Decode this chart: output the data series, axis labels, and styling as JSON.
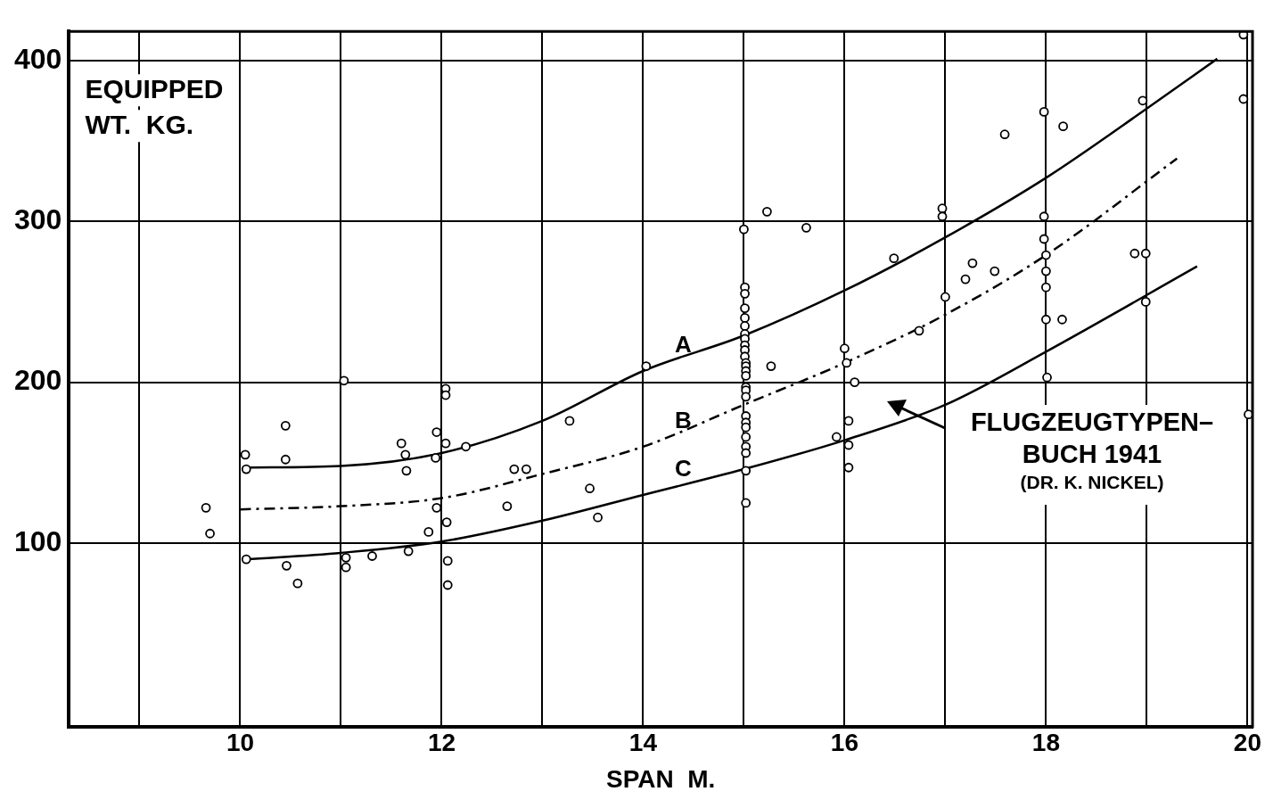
{
  "chart_data": {
    "type": "scatter",
    "xlabel": "SPAN  M.",
    "ylabel": "EQUIPPED\nWT.  KG.",
    "xlim": [
      8.3,
      20.05
    ],
    "ylim": [
      -14,
      418
    ],
    "xticks": [
      {
        "value": 9,
        "label": null
      },
      10,
      {
        "value": 11,
        "label": null
      },
      12,
      {
        "value": 13,
        "label": null
      },
      14,
      {
        "value": 15,
        "label": null
      },
      16,
      {
        "value": 17,
        "label": null
      },
      18,
      {
        "value": 19,
        "label": null
      },
      20
    ],
    "yticks": [
      100,
      200,
      300,
      400
    ],
    "grid": true,
    "legend": false,
    "marker": "circle",
    "series": [
      {
        "color": "#000000",
        "x": [
          11.03,
          12.04,
          12.04,
          10.45,
          11.95,
          13.27,
          14.03,
          10.05,
          10.45,
          11.6,
          12.04,
          12.24,
          11.64,
          11.94,
          11.65,
          10.06,
          12.72,
          12.84,
          13.47,
          9.66,
          11.95,
          12.65,
          13.55,
          9.7,
          11.87,
          12.05,
          10.06,
          11.05,
          11.31,
          11.05,
          11.67,
          12.06,
          10.46,
          10.57,
          12.06,
          15.23,
          15,
          15.62,
          16.97,
          16.97,
          16.49,
          17,
          15.01,
          15.01,
          15.01,
          15.01,
          15.01,
          15.01,
          15.01,
          15.01,
          15.01,
          15.01,
          15.02,
          15.02,
          15.02,
          15.02,
          15.02,
          15.02,
          15.02,
          15.02,
          15.02,
          15.02,
          15.02,
          15.02,
          15.02,
          15.02,
          15.02,
          15.27,
          16,
          16.02,
          16.1,
          16.04,
          15.92,
          16.04,
          16.04,
          16.74,
          19.96,
          19.96,
          18.96,
          17.98,
          18.17,
          17.59,
          17.98,
          17.98,
          18,
          17.27,
          17.2,
          17.49,
          18,
          18,
          18.88,
          18.99,
          18.99,
          18,
          18.16,
          18.01,
          20.01
        ],
        "values": [
          201,
          196,
          192,
          173,
          169,
          176,
          210,
          155,
          152,
          162,
          162,
          160,
          155,
          153,
          145,
          146,
          146,
          146,
          134,
          122,
          122,
          123,
          116,
          106,
          107,
          113,
          90,
          91,
          92,
          85,
          95,
          89,
          86,
          75,
          74,
          306,
          295,
          296,
          308,
          303,
          277,
          253,
          259,
          255,
          246,
          240,
          235,
          230,
          227,
          223,
          220,
          216,
          212,
          210,
          207,
          204,
          197,
          195,
          191,
          179,
          175,
          172,
          166,
          160,
          156,
          145,
          125,
          210,
          221,
          212,
          200,
          176,
          166,
          161,
          147,
          232,
          416,
          376,
          375,
          368,
          359,
          354,
          303,
          289,
          279,
          274,
          264,
          269,
          269,
          259,
          280,
          280,
          250,
          239,
          239,
          203,
          180
        ]
      },
      {
        "type": "line",
        "name": "A",
        "color": "#000000",
        "line_style": "solid",
        "marker": "none",
        "x": [
          10.06,
          11,
          12,
          13,
          14,
          15,
          16,
          17,
          18,
          19,
          19.7
        ],
        "values": [
          147,
          148,
          156,
          176,
          207,
          229,
          257,
          290,
          327,
          370,
          401
        ]
      },
      {
        "type": "line",
        "name": "B",
        "color": "#000000",
        "line_style": "dashed",
        "marker": "none",
        "x": [
          10,
          11,
          12,
          13,
          14,
          15,
          16,
          17,
          18,
          19.3
        ],
        "values": [
          121,
          123,
          128,
          143,
          160,
          186,
          212,
          242,
          279,
          339
        ]
      },
      {
        "type": "line",
        "name": "C",
        "color": "#000000",
        "line_style": "solid",
        "marker": "none",
        "x": [
          10.06,
          11,
          12,
          13,
          14,
          15,
          16,
          17,
          18,
          19.5
        ],
        "values": [
          90,
          94,
          101,
          114,
          130,
          146,
          164,
          186,
          219,
          272
        ]
      }
    ],
    "annotations": [
      "FLUGZEUGTYPEN–\nBUCH 1941\n(DR. K. NICKEL)"
    ]
  }
}
